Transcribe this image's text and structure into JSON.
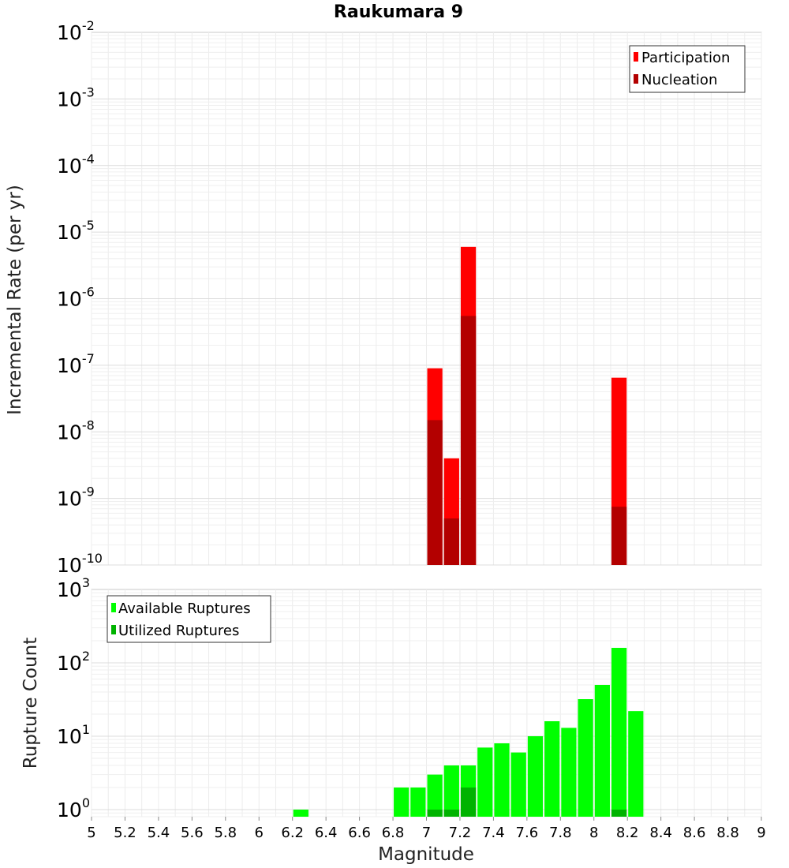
{
  "chart_data": [
    {
      "type": "bar",
      "title": "Raukumara 9",
      "xlabel": "",
      "ylabel": "Incremental Rate (per yr)",
      "yscale": "log",
      "ylim": [
        1e-10,
        0.01
      ],
      "xlim": [
        5,
        9
      ],
      "grid": true,
      "legend_position": "top-right",
      "y_ticks": [
        {
          "base": "10",
          "exp": "-10",
          "value": 1e-10
        },
        {
          "base": "10",
          "exp": "-9",
          "value": 1e-09
        },
        {
          "base": "10",
          "exp": "-8",
          "value": 1e-08
        },
        {
          "base": "10",
          "exp": "-7",
          "value": 1e-07
        },
        {
          "base": "10",
          "exp": "-6",
          "value": 1e-06
        },
        {
          "base": "10",
          "exp": "-5",
          "value": 1e-05
        },
        {
          "base": "10",
          "exp": "-4",
          "value": 0.0001
        },
        {
          "base": "10",
          "exp": "-3",
          "value": 0.001
        },
        {
          "base": "10",
          "exp": "-2",
          "value": 0.01
        }
      ],
      "series": [
        {
          "name": "Participation",
          "color": "#ff0000",
          "x": [
            7.05,
            7.15,
            7.25,
            8.15
          ],
          "values": [
            9e-08,
            4e-09,
            6e-06,
            6.5e-08
          ]
        },
        {
          "name": "Nucleation",
          "color": "#b30000",
          "x": [
            7.05,
            7.15,
            7.25,
            8.15
          ],
          "values": [
            1.5e-08,
            5e-10,
            5.5e-07,
            7.5e-10
          ]
        }
      ]
    },
    {
      "type": "bar",
      "xlabel": "Magnitude",
      "ylabel": "Rupture Count",
      "yscale": "log",
      "ylim": [
        0.8,
        1000
      ],
      "xlim": [
        5,
        9
      ],
      "grid": true,
      "legend_position": "top-left",
      "x_ticks": [
        "5",
        "5.2",
        "5.4",
        "5.6",
        "5.8",
        "6",
        "6.2",
        "6.4",
        "6.6",
        "6.8",
        "7",
        "7.2",
        "7.4",
        "7.6",
        "7.8",
        "8",
        "8.2",
        "8.4",
        "8.6",
        "8.8",
        "9"
      ],
      "y_ticks": [
        {
          "base": "10",
          "exp": "0",
          "value": 1
        },
        {
          "base": "10",
          "exp": "1",
          "value": 10
        },
        {
          "base": "10",
          "exp": "2",
          "value": 100
        },
        {
          "base": "10",
          "exp": "3",
          "value": 1000
        }
      ],
      "series": [
        {
          "name": "Available Ruptures",
          "color": "#00ff00",
          "x": [
            6.25,
            6.85,
            6.95,
            7.05,
            7.15,
            7.25,
            7.35,
            7.45,
            7.55,
            7.65,
            7.75,
            7.85,
            7.95,
            8.05,
            8.15,
            8.25
          ],
          "values": [
            1,
            2,
            2,
            3,
            4,
            4,
            7,
            8,
            6,
            10,
            16,
            13,
            32,
            50,
            160,
            22
          ]
        },
        {
          "name": "Utilized Ruptures",
          "color": "#00b300",
          "x": [
            7.05,
            7.15,
            7.25,
            8.15
          ],
          "values": [
            1,
            1,
            2,
            1
          ]
        }
      ]
    }
  ]
}
